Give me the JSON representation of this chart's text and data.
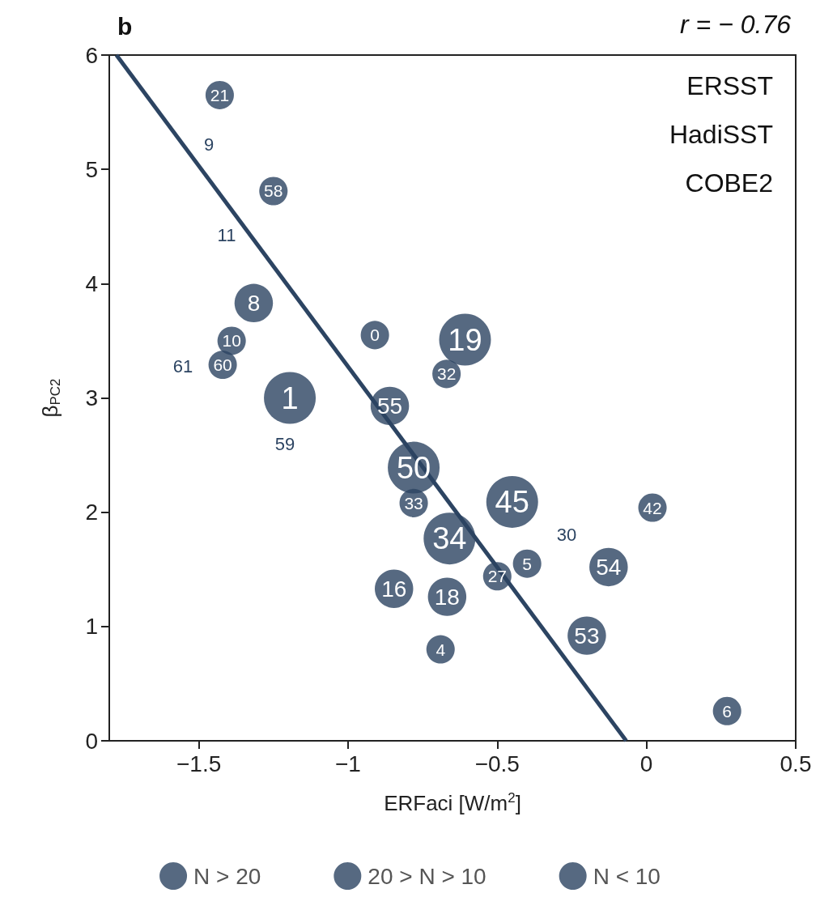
{
  "chart_data": {
    "type": "bubble",
    "title": "b",
    "xlabel": "ERFaci [W/m$^{2}$]",
    "ylabel": "β$_{PC2}$",
    "xlim": [
      -1.8,
      0.5
    ],
    "xticks": [
      -1.5,
      -1,
      -0.5,
      0,
      0.5
    ],
    "ylim": [
      0,
      6
    ],
    "yticks": [
      0,
      1,
      2,
      3,
      4,
      5,
      6
    ],
    "legend": "bottom",
    "series": [
      {
        "name": "N > 20",
        "color": "#2c4462",
        "marker": "circle",
        "x": [
          -1.195,
          -0.608,
          -0.78,
          -0.45,
          -0.66
        ],
        "values": [
          3.0,
          3.51,
          2.39,
          2.09,
          1.77
        ],
        "sizes": [
          1,
          1,
          1,
          1,
          1
        ]
      },
      {
        "name": "20 > N > 10",
        "color": "#2c4462",
        "marker": "circle",
        "x": [
          -1.316,
          -0.86,
          -0.846,
          -0.668,
          -0.127,
          -0.2
        ],
        "values": [
          3.83,
          2.93,
          1.33,
          1.26,
          1.52,
          0.92
        ],
        "sizes": [
          0.55,
          0.55,
          0.55,
          0.55,
          0.55,
          0.55
        ]
      },
      {
        "name": "N < 10",
        "color": "#2c4462",
        "marker": "circle",
        "x": [
          -1.43,
          -1.25,
          -1.39,
          -1.42,
          -0.91,
          -0.67,
          -0.78,
          -0.5,
          -0.4,
          0.02,
          -0.69,
          0.27
        ],
        "values": [
          5.65,
          4.81,
          3.5,
          3.29,
          3.55,
          3.21,
          2.08,
          1.44,
          1.55,
          2.04,
          0.8,
          0.26
        ],
        "sizes": [
          0.3,
          0.3,
          0.3,
          0.3,
          0.3,
          0.3,
          0.3,
          0.3,
          0.3,
          0.3,
          0.3,
          0.3
        ]
      },
      {
        "type": "line",
        "color": "#2c4462",
        "marker": "none",
        "x": [
          -1.776,
          -0.068
        ],
        "values": [
          6,
          0
        ]
      }
    ],
    "annotations": [
      "r = − 0.76",
      "ERSST",
      "HadiSST",
      "COBE2",
      "9",
      "11",
      "61",
      "59",
      "30",
      {
        "text": "1",
        "x": -1.195,
        "y": 3.0
      },
      {
        "text": "19",
        "x": -0.608,
        "y": 3.51
      },
      {
        "text": "50",
        "x": -0.78,
        "y": 2.39
      },
      {
        "text": "45",
        "x": -0.45,
        "y": 2.09
      },
      {
        "text": "34",
        "x": -0.66,
        "y": 1.77
      },
      {
        "text": "8",
        "x": -1.316,
        "y": 3.83
      },
      {
        "text": "55",
        "x": -0.86,
        "y": 2.93
      },
      {
        "text": "16",
        "x": -0.846,
        "y": 1.33
      },
      {
        "text": "18",
        "x": -0.668,
        "y": 1.26
      },
      {
        "text": "54",
        "x": -0.127,
        "y": 1.52
      },
      {
        "text": "53",
        "x": -0.2,
        "y": 0.92
      },
      {
        "text": "21",
        "x": -1.43,
        "y": 5.65
      },
      {
        "text": "58",
        "x": -1.25,
        "y": 4.81
      },
      {
        "text": "10",
        "x": -1.39,
        "y": 3.5
      },
      {
        "text": "60",
        "x": -1.42,
        "y": 3.29
      },
      {
        "text": "0",
        "x": -0.91,
        "y": 3.55
      },
      {
        "text": "32",
        "x": -0.67,
        "y": 3.21
      },
      {
        "text": "33",
        "x": -0.78,
        "y": 2.08
      },
      {
        "text": "27",
        "x": -0.5,
        "y": 1.44
      },
      {
        "text": "5",
        "x": -0.4,
        "y": 1.55
      },
      {
        "text": "42",
        "x": 0.02,
        "y": 2.04
      },
      {
        "text": "4",
        "x": -0.69,
        "y": 0.8
      },
      {
        "text": "6",
        "x": 0.27,
        "y": 0.26
      }
    ]
  }
}
